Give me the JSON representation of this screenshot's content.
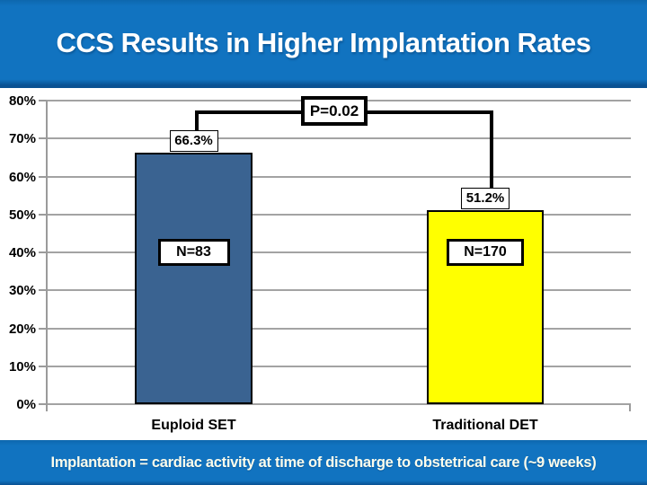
{
  "slide": {
    "title": "CCS Results in Higher Implantation Rates",
    "footnote": "Implantation = cardiac activity at time of discharge to obstetrical care (~9 weeks)"
  },
  "colors": {
    "band_blue": "#1173C0",
    "band_edge_blue": "#0A5192",
    "bar_blue": "#3A6391",
    "bar_yellow": "#FFFF00",
    "gridline_gray": "#A3A3A3",
    "label_text": "#000000",
    "title_text": "#FFFFFF",
    "footnote_text": "#FDFDEC"
  },
  "chart_data": {
    "type": "bar",
    "title": "CCS Results in Higher Implantation Rates",
    "categories": [
      "Euploid SET",
      "Traditional DET"
    ],
    "values": [
      66.3,
      51.2
    ],
    "value_labels": [
      "66.3%",
      "51.2%"
    ],
    "n_labels": [
      "N=83",
      "N=170"
    ],
    "p_value_label": "P=0.02",
    "xlabel": "",
    "ylabel": "",
    "ylim": [
      0,
      80
    ],
    "ytick_step": 10,
    "ytick_labels": [
      "80%",
      "70%",
      "60%",
      "50%",
      "40%",
      "30%",
      "20%",
      "10%",
      "0%"
    ],
    "grid": true,
    "legend": false,
    "bar_colors": [
      "#3A6391",
      "#FFFF00"
    ],
    "annotation": "P=0.02 significance bracket linking the two bars"
  }
}
